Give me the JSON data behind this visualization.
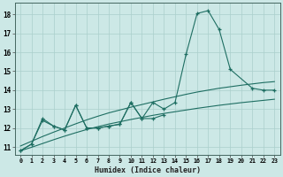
{
  "x": [
    0,
    1,
    2,
    3,
    4,
    5,
    6,
    7,
    8,
    9,
    10,
    11,
    12,
    13,
    14,
    15,
    16,
    17,
    18,
    19,
    20,
    21,
    22,
    23
  ],
  "line_main": [
    10.8,
    11.15,
    12.5,
    12.1,
    11.9,
    13.2,
    12.0,
    12.0,
    12.1,
    12.2,
    13.35,
    12.5,
    13.35,
    13.0,
    13.35,
    15.9,
    18.05,
    18.2,
    17.2,
    15.1,
    null,
    14.1,
    14.0,
    14.0
  ],
  "line_secondary": [
    10.8,
    11.15,
    12.4,
    12.1,
    11.9,
    13.2,
    12.0,
    12.0,
    12.1,
    12.2,
    13.35,
    12.5,
    12.5,
    12.7,
    null,
    null,
    null,
    null,
    null,
    null,
    null,
    null,
    null,
    null
  ],
  "line_upper": [
    11.05,
    11.3,
    11.55,
    11.78,
    12.0,
    12.22,
    12.43,
    12.62,
    12.8,
    12.95,
    13.1,
    13.24,
    13.38,
    13.52,
    13.65,
    13.78,
    13.9,
    14.0,
    14.1,
    14.18,
    14.26,
    14.33,
    14.4,
    14.45
  ],
  "line_lower": [
    10.8,
    10.98,
    11.18,
    11.38,
    11.57,
    11.75,
    11.92,
    12.07,
    12.21,
    12.33,
    12.45,
    12.56,
    12.67,
    12.77,
    12.86,
    12.95,
    13.04,
    13.12,
    13.2,
    13.27,
    13.34,
    13.4,
    13.46,
    13.52
  ],
  "bg_color": "#cce8e6",
  "line_color": "#1e6e62",
  "grid_color": "#aacfcc",
  "xlabel": "Humidex (Indice chaleur)",
  "ylim": [
    10.6,
    18.6
  ],
  "xlim": [
    -0.5,
    23.5
  ],
  "yticks": [
    11,
    12,
    13,
    14,
    15,
    16,
    17,
    18
  ],
  "xticks": [
    0,
    1,
    2,
    3,
    4,
    5,
    6,
    7,
    8,
    9,
    10,
    11,
    12,
    13,
    14,
    15,
    16,
    17,
    18,
    19,
    20,
    21,
    22,
    23
  ]
}
